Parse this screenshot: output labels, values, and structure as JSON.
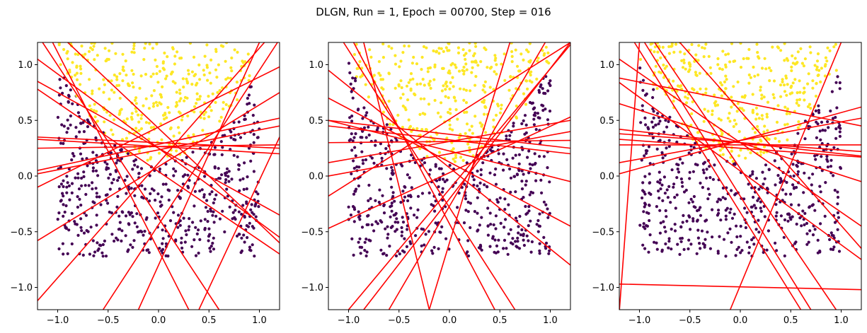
{
  "title": "DLGN, Run = 1, Epoch = 00700, Step = 016",
  "colors": {
    "class0": "#440154",
    "class1": "#fde725",
    "line": "#ff0000",
    "axis": "#000000"
  },
  "chart_data": [
    {
      "type": "scatter",
      "xlim": [
        -1.2,
        1.2
      ],
      "ylim": [
        -1.2,
        1.2
      ],
      "xticks": [
        "−1.0",
        "−0.5",
        "0.0",
        "0.5",
        "1.0"
      ],
      "xtick_values": [
        -1.0,
        -0.5,
        0.0,
        0.5,
        1.0
      ],
      "yticks": [
        "−1.0",
        "−0.5",
        "0.0",
        "0.5",
        "1.0"
      ],
      "ytick_values": [
        -1.0,
        -0.5,
        0.0,
        0.5,
        1.0
      ],
      "grid": false,
      "lines": [
        [
          [
            -1.2,
            1.05
          ],
          [
            1.2,
            -0.55
          ]
        ],
        [
          [
            -1.2,
            0.85
          ],
          [
            1.2,
            -0.35
          ]
        ],
        [
          [
            -1.2,
            0.78
          ],
          [
            1.2,
            -0.7
          ]
        ],
        [
          [
            -1.2,
            0.35
          ],
          [
            1.2,
            0.25
          ]
        ],
        [
          [
            -1.2,
            0.33
          ],
          [
            1.2,
            0.2
          ]
        ],
        [
          [
            -1.2,
            0.05
          ],
          [
            1.2,
            0.52
          ]
        ],
        [
          [
            -1.2,
            0.02
          ],
          [
            1.2,
            0.45
          ]
        ],
        [
          [
            -1.2,
            -0.1
          ],
          [
            1.2,
            0.98
          ]
        ],
        [
          [
            -1.2,
            -0.58
          ],
          [
            1.2,
            0.75
          ]
        ],
        [
          [
            -1.2,
            -1.12
          ],
          [
            1.05,
            1.2
          ]
        ],
        [
          [
            -0.55,
            -1.2
          ],
          [
            1.18,
            1.2
          ]
        ],
        [
          [
            -0.2,
            -1.2
          ],
          [
            1.0,
            1.2
          ]
        ],
        [
          [
            0.4,
            -1.2
          ],
          [
            1.2,
            0.35
          ]
        ],
        [
          [
            -1.15,
            1.2
          ],
          [
            0.6,
            -1.2
          ]
        ],
        [
          [
            -1.05,
            1.2
          ],
          [
            0.3,
            -1.2
          ]
        ],
        [
          [
            -0.9,
            1.2
          ],
          [
            1.2,
            -0.6
          ]
        ],
        [
          [
            -1.2,
            0.25
          ],
          [
            1.2,
            0.28
          ]
        ]
      ]
    },
    {
      "type": "scatter",
      "xlim": [
        -1.2,
        1.2
      ],
      "ylim": [
        -1.2,
        1.2
      ],
      "xticks": [
        "−1.0",
        "−0.5",
        "0.0",
        "0.5",
        "1.0"
      ],
      "xtick_values": [
        -1.0,
        -0.5,
        0.0,
        0.5,
        1.0
      ],
      "yticks": [
        "−1.0",
        "−0.5",
        "0.0",
        "0.5",
        "1.0"
      ],
      "ytick_values": [
        -1.0,
        -0.5,
        0.0,
        0.5,
        1.0
      ],
      "grid": false,
      "lines": [
        [
          [
            -1.2,
            0.7
          ],
          [
            1.2,
            -0.45
          ]
        ],
        [
          [
            -1.2,
            0.5
          ],
          [
            1.2,
            0.25
          ]
        ],
        [
          [
            -1.2,
            0.45
          ],
          [
            1.2,
            0.2
          ]
        ],
        [
          [
            -1.2,
            0.3
          ],
          [
            1.2,
            0.32
          ]
        ],
        [
          [
            -1.2,
            0.12
          ],
          [
            1.2,
            0.5
          ]
        ],
        [
          [
            -1.2,
            0.0
          ],
          [
            1.2,
            0.4
          ]
        ],
        [
          [
            -1.2,
            -0.18
          ],
          [
            1.2,
            1.2
          ]
        ],
        [
          [
            -1.2,
            -0.47
          ],
          [
            1.2,
            0.53
          ]
        ],
        [
          [
            -1.0,
            -1.2
          ],
          [
            1.2,
            1.18
          ]
        ],
        [
          [
            -0.85,
            -1.2
          ],
          [
            1.2,
            1.2
          ]
        ],
        [
          [
            -0.6,
            -1.2
          ],
          [
            0.95,
            1.2
          ]
        ],
        [
          [
            -0.2,
            -1.2
          ],
          [
            0.6,
            1.2
          ]
        ],
        [
          [
            -1.05,
            1.2
          ],
          [
            0.65,
            -1.2
          ]
        ],
        [
          [
            -0.95,
            1.2
          ],
          [
            0.45,
            -1.2
          ]
        ],
        [
          [
            -1.2,
            0.95
          ],
          [
            1.2,
            -0.8
          ]
        ],
        [
          [
            -0.85,
            1.2
          ],
          [
            -0.2,
            -1.2
          ]
        ],
        [
          [
            -1.2,
            0.5
          ],
          [
            1.2,
            -0.05
          ]
        ]
      ]
    },
    {
      "type": "scatter",
      "xlim": [
        -1.2,
        1.2
      ],
      "ylim": [
        -1.2,
        1.2
      ],
      "xticks": [
        "−1.0",
        "−0.5",
        "0.0",
        "0.5",
        "1.0"
      ],
      "xtick_values": [
        -1.0,
        -0.5,
        0.0,
        0.5,
        1.0
      ],
      "yticks": [
        "−1.0",
        "−0.5",
        "0.0",
        "0.5",
        "1.0"
      ],
      "ytick_values": [
        -1.0,
        -0.5,
        0.0,
        0.5,
        1.0
      ],
      "grid": false,
      "lines": [
        [
          [
            -1.2,
            0.88
          ],
          [
            1.2,
            0.45
          ]
        ],
        [
          [
            -1.2,
            0.42
          ],
          [
            1.2,
            0.18
          ]
        ],
        [
          [
            -1.2,
            0.38
          ],
          [
            1.2,
            0.22
          ]
        ],
        [
          [
            -1.2,
            0.33
          ],
          [
            1.2,
            0.17
          ]
        ],
        [
          [
            -1.2,
            0.12
          ],
          [
            1.2,
            0.52
          ]
        ],
        [
          [
            -1.2,
            0.02
          ],
          [
            1.2,
            0.62
          ]
        ],
        [
          [
            -1.2,
            -1.22
          ],
          [
            -1.0,
            1.2
          ]
        ],
        [
          [
            -1.2,
            -0.97
          ],
          [
            1.2,
            -1.02
          ]
        ],
        [
          [
            -0.1,
            -1.2
          ],
          [
            1.0,
            1.2
          ]
        ],
        [
          [
            -1.2,
            1.05
          ],
          [
            1.2,
            -0.45
          ]
        ],
        [
          [
            -1.2,
            0.84
          ],
          [
            1.2,
            -0.75
          ]
        ],
        [
          [
            -1.2,
            0.65
          ],
          [
            1.2,
            -0.05
          ]
        ],
        [
          [
            -1.05,
            1.2
          ],
          [
            0.6,
            -1.2
          ]
        ],
        [
          [
            -0.95,
            1.2
          ],
          [
            0.7,
            -1.2
          ]
        ],
        [
          [
            -0.85,
            1.2
          ],
          [
            0.95,
            -1.2
          ]
        ],
        [
          [
            -0.6,
            1.2
          ],
          [
            1.2,
            -0.65
          ]
        ],
        [
          [
            -1.2,
            0.28
          ],
          [
            1.2,
            0.28
          ]
        ]
      ]
    }
  ]
}
